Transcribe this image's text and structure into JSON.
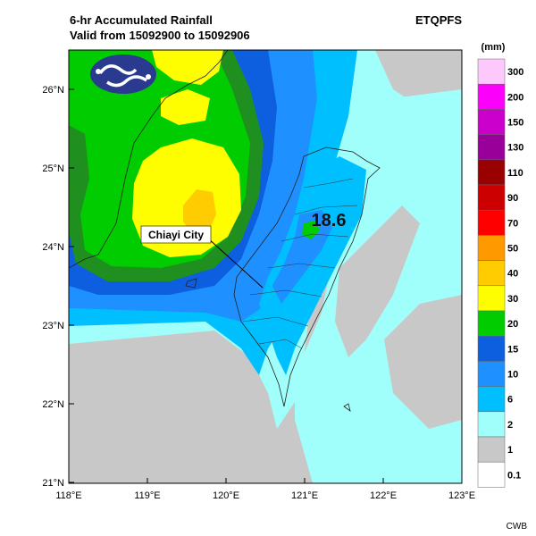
{
  "header": {
    "title_line1": "6-hr Accumulated Rainfall",
    "title_line2": "Valid from 15092900 to 15092906",
    "model": "ETQPFS"
  },
  "footer": {
    "credit": "CWB"
  },
  "map": {
    "lat_labels": [
      "26°N",
      "25°N",
      "24°N",
      "23°N",
      "22°N",
      "21°N"
    ],
    "lon_labels": [
      "118°E",
      "119°E",
      "120°E",
      "121°E",
      "122°E",
      "123°E"
    ],
    "max_value_label": "18.6",
    "callout_label": "Chiayi City",
    "logo_icon": "cwb-cloud-logo-icon"
  },
  "colorbar": {
    "unit": "(mm)",
    "levels": [
      "300",
      "200",
      "150",
      "130",
      "110",
      "90",
      "70",
      "50",
      "40",
      "30",
      "20",
      "15",
      "10",
      "6",
      "2",
      "1",
      "0.1"
    ],
    "colors": [
      "#fdc9fd",
      "#fb00fb",
      "#cc00cc",
      "#990099",
      "#990000",
      "#cc0000",
      "#fe0000",
      "#fe9900",
      "#fecc00",
      "#fffe00",
      "#00cc00",
      "#0d5fe0",
      "#1e90ff",
      "#00bfff",
      "#a0fffa",
      "#c8c8c8",
      "#ffffff"
    ]
  }
}
